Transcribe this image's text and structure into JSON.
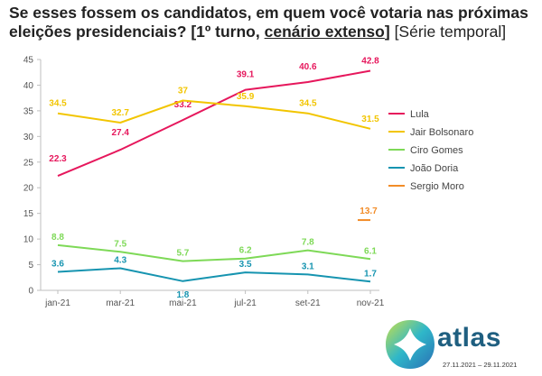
{
  "title": {
    "part1": "Se esses fossem os candidatos, em quem você votaria nas próximas eleições presidenciais? [1º turno, ",
    "part2": "cenário extenso",
    "part3": "] ",
    "part4": "[Série temporal]"
  },
  "chart_data": {
    "type": "line",
    "x": [
      "jan-21",
      "mar-21",
      "mai-21",
      "jul-21",
      "set-21",
      "nov-21"
    ],
    "ylim": [
      0,
      45
    ],
    "yticks": [
      0,
      5,
      10,
      15,
      20,
      25,
      30,
      35,
      40,
      45
    ],
    "grid": true,
    "legend_position": "right",
    "series": [
      {
        "name": "Lula",
        "color": "#e6175c",
        "values": [
          22.3,
          27.4,
          33.2,
          39.1,
          40.6,
          42.8
        ],
        "labels": [
          "22.3",
          "27.4",
          "33.2",
          "39.1",
          "40.6",
          "42.8"
        ]
      },
      {
        "name": "Jair Bolsonaro",
        "color": "#f2c500",
        "values": [
          34.5,
          32.7,
          37,
          35.9,
          34.5,
          31.5
        ],
        "labels": [
          "34.5",
          "32.7",
          "37",
          "35.9",
          "34.5",
          "31.5"
        ]
      },
      {
        "name": "Ciro Gomes",
        "color": "#7ed957",
        "values": [
          8.8,
          7.5,
          5.7,
          6.2,
          7.8,
          6.1
        ],
        "labels": [
          "8.8",
          "7.5",
          "5.7",
          "6.2",
          "7.8",
          "6.1"
        ]
      },
      {
        "name": "João Doria",
        "color": "#1694b0",
        "values": [
          3.6,
          4.3,
          1.8,
          3.5,
          3.1,
          1.7
        ],
        "labels": [
          "3.6",
          "4.3",
          "1.8",
          "3.5",
          "3.1",
          "1.7"
        ]
      },
      {
        "name": "Sergio Moro",
        "color": "#f28c28",
        "values": [
          null,
          null,
          null,
          null,
          null,
          13.7
        ],
        "labels": [
          null,
          null,
          null,
          null,
          null,
          "13.7"
        ]
      }
    ]
  },
  "logo": {
    "text": "atlas",
    "date": "27.11.2021 – 29.11.2021"
  }
}
